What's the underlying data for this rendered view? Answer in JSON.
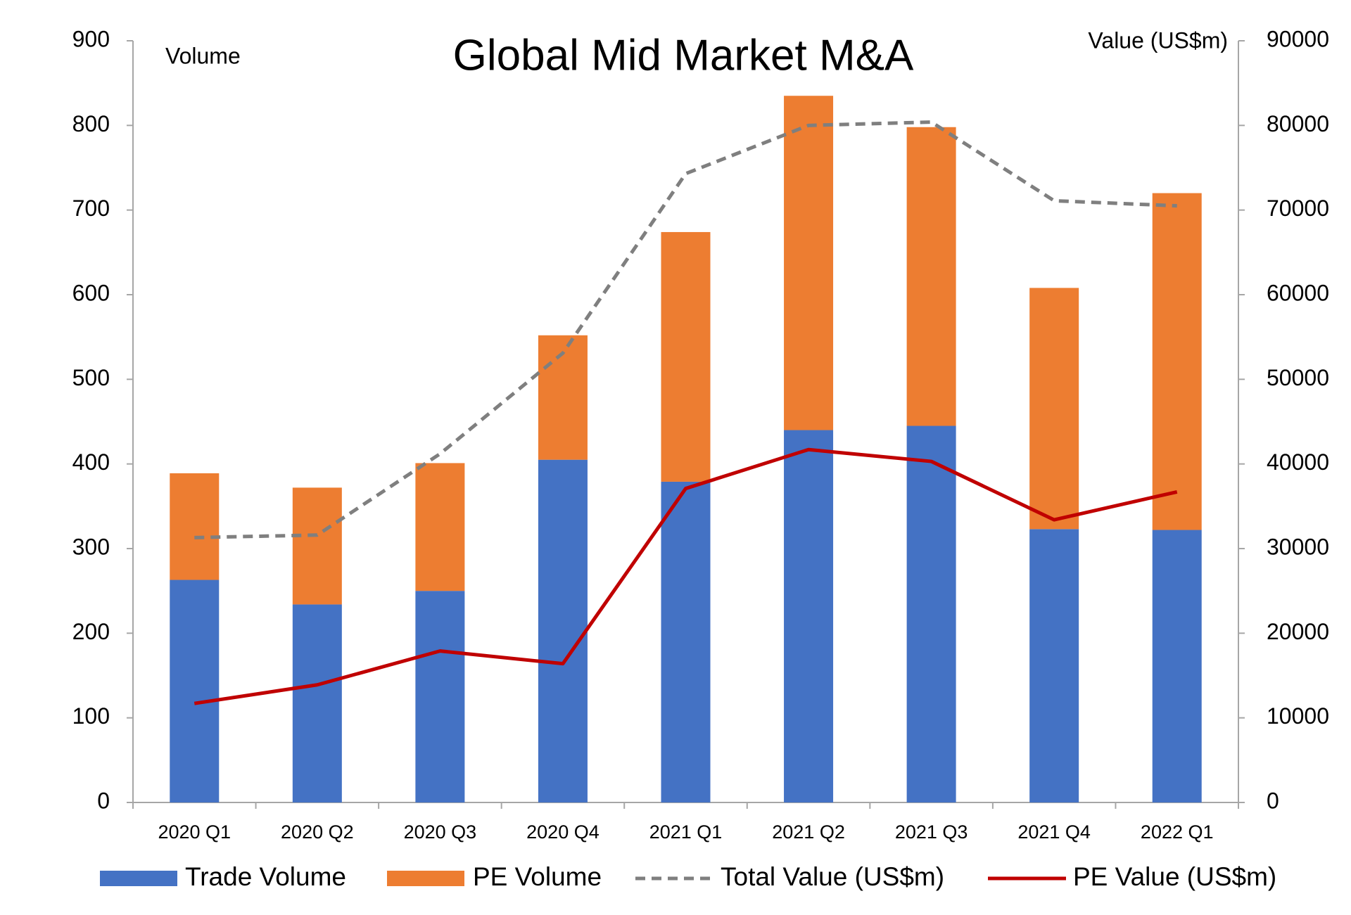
{
  "chart_data": {
    "type": "bar",
    "stacked": true,
    "title": "Global Mid Market M&A",
    "y_label": "Volume",
    "y2_label": "Value (US$m)",
    "categories": [
      "2020 Q1",
      "2020 Q2",
      "2020 Q3",
      "2020 Q4",
      "2021 Q1",
      "2021 Q2",
      "2021 Q3",
      "2021 Q4",
      "2022 Q1"
    ],
    "series": [
      {
        "name": "Trade Volume",
        "type": "bar",
        "color": "#4472c4",
        "values": [
          263,
          234,
          250,
          405,
          379,
          440,
          445,
          323,
          322
        ]
      },
      {
        "name": "PE Volume",
        "type": "bar",
        "color": "#ed7d31",
        "values": [
          126,
          138,
          151,
          147,
          295,
          395,
          353,
          285,
          398
        ]
      },
      {
        "name": "Total Value (US$m)",
        "type": "line",
        "axis": "y2",
        "style": "dashed",
        "color": "#7f7f7f",
        "values": [
          31300,
          31600,
          41200,
          53100,
          74300,
          80000,
          80400,
          71100,
          70500
        ]
      },
      {
        "name": "PE Value (US$m)",
        "type": "line",
        "axis": "y2",
        "style": "solid",
        "color": "#c00000",
        "values": [
          11700,
          13900,
          17900,
          16400,
          37100,
          41700,
          40300,
          33400,
          36700
        ]
      }
    ],
    "ylim": [
      0,
      900
    ],
    "yticks": [
      0,
      100,
      200,
      300,
      400,
      500,
      600,
      700,
      800,
      900
    ],
    "y2lim": [
      0,
      90000
    ],
    "y2ticks": [
      0,
      10000,
      20000,
      30000,
      40000,
      50000,
      60000,
      70000,
      80000,
      90000
    ],
    "grid": false,
    "legend": "bottom"
  }
}
